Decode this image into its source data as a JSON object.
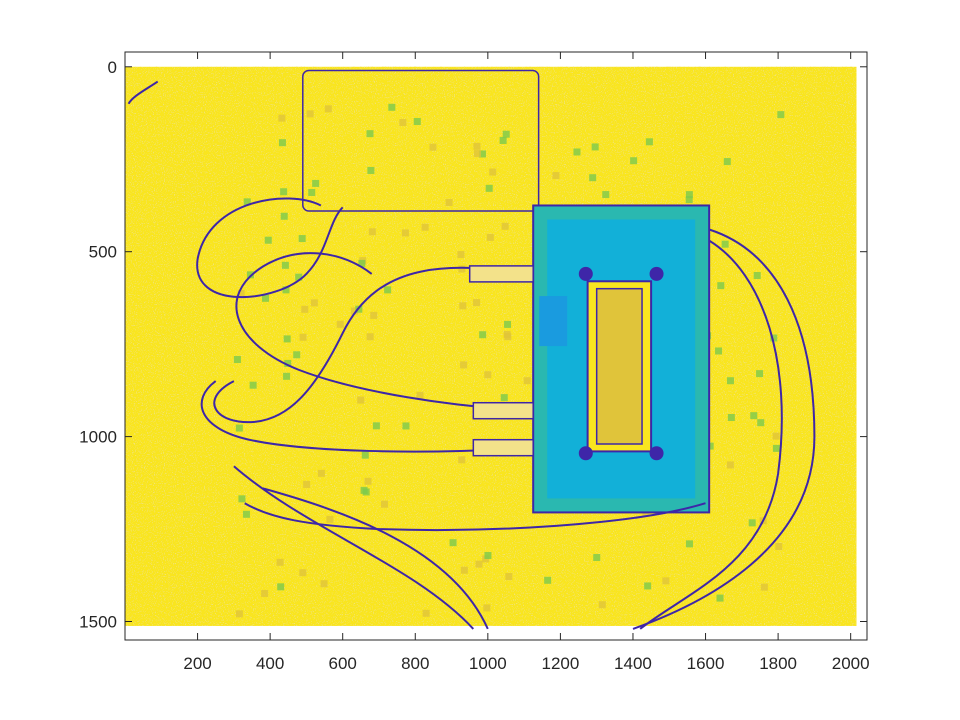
{
  "chart_data": {
    "type": "heatmap",
    "title": "",
    "xlabel": "",
    "ylabel": "",
    "colormap": "parula",
    "colors": {
      "low": "#3e26a8",
      "mid_blue": "#1a9bdf",
      "teal": "#2ab8b0",
      "green": "#7cc94e",
      "high_olive": "#e0c43a",
      "max_yellow": "#f9e51f"
    },
    "xlim": [
      0,
      2045
    ],
    "ylim": [
      -40,
      1550
    ],
    "y_reversed": true,
    "image_extent": {
      "x": [
        0,
        2016
      ],
      "y": [
        0,
        1512
      ]
    },
    "xticks": [
      200,
      400,
      600,
      800,
      1000,
      1200,
      1400,
      1600,
      1800,
      2000
    ],
    "yticks": [
      0,
      500,
      1000,
      1500
    ],
    "grid": false,
    "content": "edge/intensity map of a handheld device with cables; dominant values high (yellow), edges low (dark blue), device face mid (blue/teal)"
  }
}
